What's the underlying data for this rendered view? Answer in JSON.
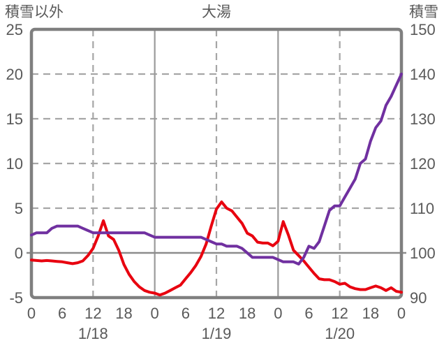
{
  "colors": {
    "background": "#ffffff",
    "plot_border": "#7f7f7f",
    "gridline": "#a6a6a6",
    "day_line": "#9a9a9a",
    "zero_line": "#8c8c8c",
    "text": "#595959",
    "red_series": "#e8000f",
    "purple_series": "#7030a0"
  },
  "chart_data": {
    "type": "line",
    "title": "大湯",
    "legend": "none",
    "grid": true,
    "hours": [
      0,
      1,
      2,
      3,
      4,
      5,
      6,
      7,
      8,
      9,
      10,
      11,
      12,
      13,
      14,
      15,
      16,
      17,
      18,
      19,
      20,
      21,
      22,
      23,
      24,
      25,
      26,
      27,
      28,
      29,
      30,
      31,
      32,
      33,
      34,
      35,
      36,
      37,
      38,
      39,
      40,
      41,
      42,
      43,
      44,
      45,
      46,
      47,
      48,
      49,
      50,
      51,
      52,
      53,
      54,
      55,
      56,
      57,
      58,
      59,
      60,
      61,
      62,
      63,
      64,
      65,
      66,
      67,
      68,
      69,
      70,
      71,
      72
    ],
    "x_axis": {
      "min": 0,
      "max": 72,
      "tick_interval": 6,
      "tick_labels": [
        "0",
        "6",
        "12",
        "18",
        "0",
        "6",
        "12",
        "18",
        "0",
        "6",
        "12",
        "18",
        "0"
      ],
      "date_labels": [
        {
          "label": "1/18",
          "hour": 12
        },
        {
          "label": "1/19",
          "hour": 36
        },
        {
          "label": "1/20",
          "hour": 60
        }
      ],
      "gridlines_dashed_hours": [
        12,
        36,
        60
      ],
      "gridlines_solid_hours": [
        24,
        48
      ]
    },
    "left_axis": {
      "title": "積雪以外",
      "min": -5,
      "max": 25,
      "tick_step": 5,
      "tick_labels": [
        "25",
        "20",
        "15",
        "10",
        "5",
        "0",
        "-5"
      ],
      "gridline_values": [
        20,
        15,
        10,
        5
      ],
      "zero_line": 0
    },
    "right_axis": {
      "title": "積雪",
      "min": 90,
      "max": 150,
      "tick_step": 10,
      "tick_labels": [
        "150",
        "140",
        "130",
        "120",
        "110",
        "100",
        "90"
      ]
    },
    "series": [
      {
        "name": "積雪以外",
        "axis": "left",
        "color": "#e8000f",
        "line_width": 4,
        "values": [
          -0.8,
          -0.85,
          -0.9,
          -0.85,
          -0.9,
          -0.95,
          -1.0,
          -1.1,
          -1.2,
          -1.1,
          -0.9,
          -0.3,
          0.5,
          1.9,
          3.6,
          1.9,
          1.5,
          0.3,
          -1.3,
          -2.4,
          -3.2,
          -3.8,
          -4.2,
          -4.4,
          -4.5,
          -4.7,
          -4.5,
          -4.2,
          -3.9,
          -3.6,
          -2.9,
          -2.2,
          -1.4,
          -0.4,
          1.0,
          3.0,
          4.9,
          5.7,
          5.0,
          4.7,
          4.0,
          3.3,
          2.2,
          1.9,
          1.2,
          1.1,
          1.1,
          0.8,
          1.3,
          3.5,
          2.0,
          0.3,
          -0.3,
          -0.9,
          -1.6,
          -2.3,
          -2.9,
          -3.0,
          -3.0,
          -3.2,
          -3.5,
          -3.4,
          -3.8,
          -4.0,
          -4.1,
          -4.1,
          -3.9,
          -3.7,
          -3.9,
          -4.2,
          -3.9,
          -4.3,
          -4.4
        ]
      },
      {
        "name": "積雪",
        "axis": "right",
        "color": "#7030a0",
        "line_width": 4,
        "values": [
          104,
          104.5,
          104.5,
          104.5,
          105.5,
          106,
          106,
          106,
          106,
          106,
          105.5,
          105,
          104.5,
          104.5,
          104.5,
          104.5,
          104.5,
          104.5,
          104.5,
          104.5,
          104.5,
          104.5,
          104.5,
          104,
          103.5,
          103.5,
          103.5,
          103.5,
          103.5,
          103.5,
          103.5,
          103.5,
          103.5,
          103.5,
          103,
          102.5,
          102,
          102,
          101.5,
          101.5,
          101.5,
          101,
          100,
          99,
          99,
          99,
          99,
          99,
          98.5,
          98,
          98,
          98,
          97.5,
          99,
          101.5,
          101,
          102.5,
          106,
          109.5,
          110.5,
          110.5,
          112.5,
          114.5,
          116.5,
          120,
          121,
          125,
          128,
          129.5,
          133,
          135,
          137.5,
          140
        ]
      }
    ]
  }
}
